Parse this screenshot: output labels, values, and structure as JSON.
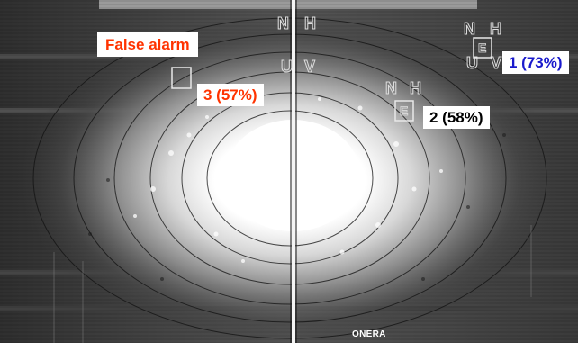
{
  "annotations": {
    "false_alarm": {
      "text": "False alarm",
      "color": "#ff3300"
    },
    "detection_3": {
      "text": "3 (57%)",
      "color": "#ff3300"
    },
    "detection_2": {
      "text": "2 (58%)",
      "color": "#000000"
    },
    "detection_1": {
      "text": "1 (73%)",
      "color": "#1a1acc"
    }
  },
  "credit": "ONERA",
  "scene_letters": [
    "N",
    "H",
    "E",
    "U",
    "V"
  ]
}
